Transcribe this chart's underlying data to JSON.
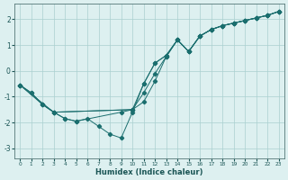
{
  "title": "",
  "xlabel": "Humidex (Indice chaleur)",
  "ylabel": "",
  "bg_color": "#ddf0f0",
  "grid_color": "#aacfcf",
  "line_color": "#1a6e6e",
  "xlim": [
    -0.5,
    23.5
  ],
  "ylim": [
    -3.4,
    2.6
  ],
  "yticks": [
    -3,
    -2,
    -1,
    0,
    1,
    2
  ],
  "xticks": [
    0,
    1,
    2,
    3,
    4,
    5,
    6,
    7,
    8,
    9,
    10,
    11,
    12,
    13,
    14,
    15,
    16,
    17,
    18,
    19,
    20,
    21,
    22,
    23
  ],
  "series": [
    {
      "x": [
        0,
        1,
        2,
        3,
        4,
        5,
        6,
        7,
        8,
        9,
        10,
        11,
        12,
        13,
        14,
        15,
        16,
        17,
        18,
        19,
        20,
        21,
        22,
        23
      ],
      "y": [
        -0.55,
        -0.85,
        -1.3,
        -1.6,
        -1.85,
        -1.95,
        -1.85,
        -2.15,
        -2.45,
        -2.6,
        -1.6,
        -0.5,
        0.3,
        0.6,
        1.2,
        0.75,
        1.35,
        1.6,
        1.75,
        1.85,
        1.95,
        2.05,
        2.15,
        2.3
      ]
    },
    {
      "x": [
        0,
        1,
        2,
        3,
        4,
        5,
        9,
        10,
        11,
        12,
        13,
        14,
        15,
        16,
        17,
        18,
        19,
        20,
        21,
        22,
        23
      ],
      "y": [
        -0.55,
        -0.85,
        -1.3,
        -1.6,
        -1.85,
        -1.95,
        -1.6,
        -1.5,
        -1.2,
        -0.4,
        0.55,
        1.2,
        0.75,
        1.35,
        1.6,
        1.75,
        1.85,
        1.95,
        2.05,
        2.15,
        2.3
      ]
    },
    {
      "x": [
        0,
        2,
        3,
        10,
        11,
        12,
        13,
        14,
        15,
        16,
        17,
        18,
        19,
        20,
        21,
        22,
        23
      ],
      "y": [
        -0.55,
        -1.3,
        -1.6,
        -1.5,
        -0.85,
        -0.1,
        0.55,
        1.2,
        0.75,
        1.35,
        1.6,
        1.75,
        1.85,
        1.95,
        2.05,
        2.15,
        2.3
      ]
    },
    {
      "x": [
        0,
        3,
        10,
        11,
        12,
        13,
        14,
        15,
        16,
        17,
        18,
        19,
        20,
        21,
        22,
        23
      ],
      "y": [
        -0.55,
        -1.6,
        -1.5,
        -0.5,
        0.3,
        0.6,
        1.2,
        0.75,
        1.35,
        1.6,
        1.75,
        1.85,
        1.95,
        2.05,
        2.15,
        2.3
      ]
    }
  ]
}
